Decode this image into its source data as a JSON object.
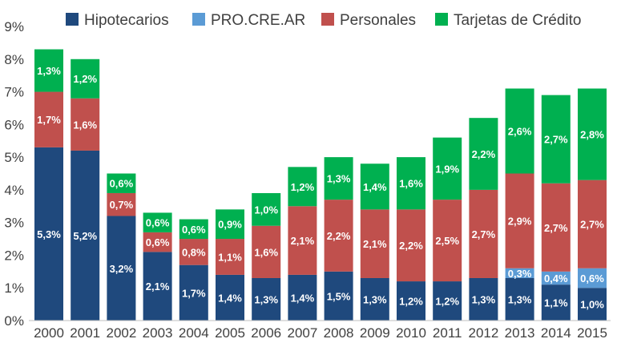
{
  "chart_data": {
    "type": "bar",
    "stacked": true,
    "title": "",
    "xlabel": "",
    "ylabel": "",
    "ylim": [
      0,
      9
    ],
    "y_ticks": [
      "0%",
      "1%",
      "2%",
      "3%",
      "4%",
      "5%",
      "6%",
      "7%",
      "8%",
      "9%"
    ],
    "grid": false,
    "legend_position": "top",
    "categories": [
      "2000",
      "2001",
      "2002",
      "2003",
      "2004",
      "2005",
      "2006",
      "2007",
      "2008",
      "2009",
      "2010",
      "2011",
      "2012",
      "2013",
      "2014",
      "2015"
    ],
    "series": [
      {
        "name": "Hipotecarios",
        "color": "#1f497d",
        "values": [
          5.3,
          5.2,
          3.2,
          2.1,
          1.7,
          1.4,
          1.3,
          1.4,
          1.5,
          1.3,
          1.2,
          1.2,
          1.3,
          1.3,
          1.1,
          1.0
        ],
        "labels": [
          "5,3%",
          "5,2%",
          "3,2%",
          "2,1%",
          "1,7%",
          "1,4%",
          "1,3%",
          "1,4%",
          "1,5%",
          "1,3%",
          "1,2%",
          "1,2%",
          "1,3%",
          "1,3%",
          "1,1%",
          "1,0%"
        ]
      },
      {
        "name": "PRO.CRE.AR",
        "color": "#5b9bd5",
        "values": [
          0,
          0,
          0,
          0,
          0,
          0,
          0,
          0,
          0,
          0,
          0,
          0,
          0,
          0.3,
          0.4,
          0.6
        ],
        "labels": [
          "",
          "",
          "",
          "",
          "",
          "",
          "",
          "",
          "",
          "",
          "",
          "",
          "",
          "0,3%",
          "0,4%",
          "0,6%"
        ]
      },
      {
        "name": "Personales",
        "color": "#c0504d",
        "values": [
          1.7,
          1.6,
          0.7,
          0.6,
          0.8,
          1.1,
          1.6,
          2.1,
          2.2,
          2.1,
          2.2,
          2.5,
          2.7,
          2.9,
          2.7,
          2.7
        ],
        "labels": [
          "1,7%",
          "1,6%",
          "0,7%",
          "0,6%",
          "0,8%",
          "1,1%",
          "1,6%",
          "2,1%",
          "2,2%",
          "2,1%",
          "2,2%",
          "2,5%",
          "2,7%",
          "2,9%",
          "2,7%",
          "2,7%"
        ]
      },
      {
        "name": "Tarjetas de Crédito",
        "color": "#00b050",
        "values": [
          1.3,
          1.2,
          0.6,
          0.6,
          0.6,
          0.9,
          1.0,
          1.2,
          1.3,
          1.4,
          1.6,
          1.9,
          2.2,
          2.6,
          2.7,
          2.8
        ],
        "labels": [
          "1,3%",
          "1,2%",
          "0,6%",
          "0,6%",
          "0,6%",
          "0,9%",
          "1,0%",
          "1,2%",
          "1,3%",
          "1,4%",
          "1,6%",
          "1,9%",
          "2,2%",
          "2,6%",
          "2,7%",
          "2,8%"
        ]
      }
    ]
  }
}
